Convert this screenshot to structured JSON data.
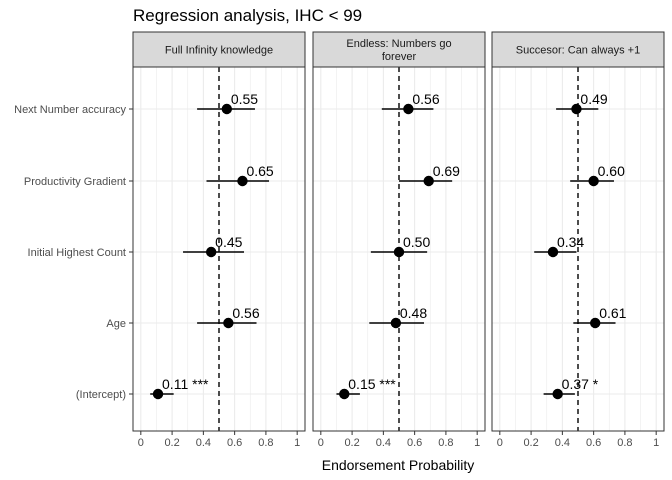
{
  "chart_data": {
    "type": "scatter",
    "title": "Regression analysis, IHC < 99",
    "xlabel": "Endorsement Probability",
    "ylabel": "",
    "xlim": [
      0,
      1
    ],
    "x_ticks": [
      "0",
      "0.2",
      "0.4",
      "0.6",
      "0.8",
      "1"
    ],
    "reference_line": 0.5,
    "grid": true,
    "categories": [
      "Next Number accuracy",
      "Productivity Gradient",
      "Initial Highest Count",
      "Age",
      "(Intercept)"
    ],
    "panels": [
      {
        "name": "Full Infinity knowledge",
        "strip_lines": [
          "Full Infinity knowledge"
        ],
        "points": [
          {
            "category": "Next Number accuracy",
            "estimate": 0.55,
            "low": 0.36,
            "high": 0.73,
            "label": "0.55"
          },
          {
            "category": "Productivity Gradient",
            "estimate": 0.65,
            "low": 0.42,
            "high": 0.82,
            "label": "0.65"
          },
          {
            "category": "Initial Highest Count",
            "estimate": 0.45,
            "low": 0.27,
            "high": 0.66,
            "label": "0.45"
          },
          {
            "category": "Age",
            "estimate": 0.56,
            "low": 0.36,
            "high": 0.74,
            "label": "0.56"
          },
          {
            "category": "(Intercept)",
            "estimate": 0.11,
            "low": 0.06,
            "high": 0.21,
            "label": "0.11 ***"
          }
        ]
      },
      {
        "name": "Endless: Numbers go forever",
        "strip_lines": [
          "Endless: Numbers go",
          "forever"
        ],
        "points": [
          {
            "category": "Next Number accuracy",
            "estimate": 0.56,
            "low": 0.39,
            "high": 0.72,
            "label": "0.56"
          },
          {
            "category": "Productivity Gradient",
            "estimate": 0.69,
            "low": 0.5,
            "high": 0.84,
            "label": "0.69"
          },
          {
            "category": "Initial Highest Count",
            "estimate": 0.5,
            "low": 0.32,
            "high": 0.68,
            "label": "0.50"
          },
          {
            "category": "Age",
            "estimate": 0.48,
            "low": 0.31,
            "high": 0.66,
            "label": "0.48"
          },
          {
            "category": "(Intercept)",
            "estimate": 0.15,
            "low": 0.1,
            "high": 0.25,
            "label": "0.15 ***"
          }
        ]
      },
      {
        "name": "Succesor: Can always +1",
        "strip_lines": [
          "Succesor: Can always +1"
        ],
        "points": [
          {
            "category": "Next Number accuracy",
            "estimate": 0.49,
            "low": 0.36,
            "high": 0.63,
            "label": "0.49"
          },
          {
            "category": "Productivity Gradient",
            "estimate": 0.6,
            "low": 0.45,
            "high": 0.73,
            "label": "0.60"
          },
          {
            "category": "Initial Highest Count",
            "estimate": 0.34,
            "low": 0.22,
            "high": 0.49,
            "label": "0.34"
          },
          {
            "category": "Age",
            "estimate": 0.61,
            "low": 0.47,
            "high": 0.74,
            "label": "0.61"
          },
          {
            "category": "(Intercept)",
            "estimate": 0.37,
            "low": 0.28,
            "high": 0.48,
            "label": "0.37 *"
          }
        ]
      }
    ]
  },
  "colors": {
    "point": "#000000",
    "strip_fill": "#d9d9d9",
    "panel_border": "#333333",
    "grid": "#ebebeb",
    "tick_text": "#4d4d4d"
  }
}
